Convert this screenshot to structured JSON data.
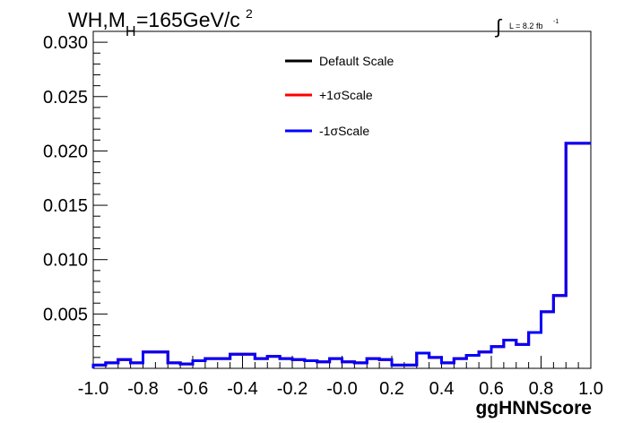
{
  "chart_data": {
    "type": "step",
    "title": {
      "main": "WH,M",
      "sub": "H",
      "after": "=165GeV/c",
      "sup": "2"
    },
    "lumi": {
      "symbol": "∫",
      "text": "L = 8.2 fb",
      "sup": "-1"
    },
    "xlabel": "ggHNNScore",
    "ylabel": "",
    "xlim": [
      -1.0,
      1.0
    ],
    "ylim": [
      0,
      0.031
    ],
    "x_ticks": [
      "-1.0",
      "-0.8",
      "-0.6",
      "-0.4",
      "-0.2",
      "-0.0",
      "0.2",
      "0.4",
      "0.6",
      "0.8",
      "1.0"
    ],
    "y_ticks": [
      "0.005",
      "0.010",
      "0.015",
      "0.020",
      "0.025",
      "0.030"
    ],
    "legend_position": "top-center",
    "bin_edges_from": -1.0,
    "bin_width": 0.05,
    "series": [
      {
        "name": "Default Scale",
        "color": "#000000",
        "values": [
          0.0003,
          0.0005,
          0.0008,
          0.0005,
          0.0015,
          0.0015,
          0.0005,
          0.0004,
          0.0007,
          0.0009,
          0.0009,
          0.0013,
          0.0013,
          0.0009,
          0.0011,
          0.0009,
          0.0008,
          0.0007,
          0.0006,
          0.0009,
          0.0006,
          0.0005,
          0.0009,
          0.0008,
          0.0003,
          0.0003,
          0.0014,
          0.001,
          0.0005,
          0.0009,
          0.0012,
          0.0015,
          0.002,
          0.0026,
          0.0022,
          0.0033,
          0.0052,
          0.0067,
          0.0207,
          0.0207
        ]
      },
      {
        "name": "+1σScale",
        "color": "#ff0000",
        "values": [
          0.0003,
          0.0005,
          0.0008,
          0.0005,
          0.0015,
          0.0015,
          0.0005,
          0.0004,
          0.0007,
          0.0009,
          0.0009,
          0.0013,
          0.0013,
          0.0009,
          0.0011,
          0.0009,
          0.0008,
          0.0007,
          0.0006,
          0.0009,
          0.0006,
          0.0005,
          0.0009,
          0.0008,
          0.0003,
          0.0003,
          0.0014,
          0.001,
          0.0005,
          0.0009,
          0.0012,
          0.0015,
          0.002,
          0.0026,
          0.0022,
          0.0033,
          0.0052,
          0.0067,
          0.0207,
          0.0207
        ]
      },
      {
        "name": "-1σScale",
        "color": "#0000ff",
        "values": [
          0.0003,
          0.0005,
          0.0008,
          0.0005,
          0.0015,
          0.0015,
          0.0005,
          0.0004,
          0.0007,
          0.0009,
          0.0009,
          0.0013,
          0.0013,
          0.0009,
          0.0011,
          0.0009,
          0.0008,
          0.0007,
          0.0006,
          0.0009,
          0.0006,
          0.0005,
          0.0009,
          0.0008,
          0.0003,
          0.0003,
          0.0014,
          0.001,
          0.0005,
          0.0009,
          0.0012,
          0.0015,
          0.002,
          0.0026,
          0.0022,
          0.0033,
          0.0052,
          0.0067,
          0.0207,
          0.0207
        ]
      }
    ]
  }
}
